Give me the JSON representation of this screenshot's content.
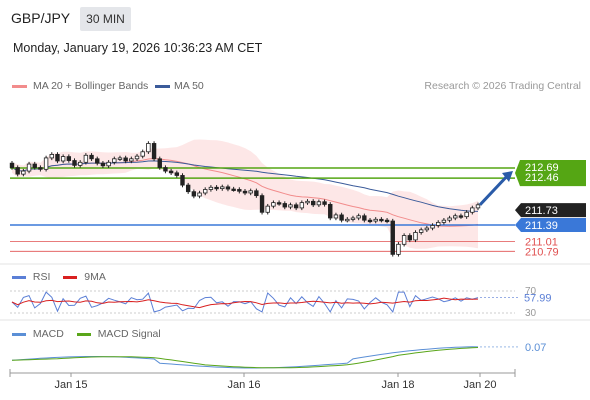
{
  "header": {
    "symbol": "GBP/JPY",
    "timeframe": "30 MIN",
    "datetime": "Monday, January 19, 2026 10:36:23 AM CET"
  },
  "legend": {
    "ma20_label": "MA 20 + Bollinger Bands",
    "ma50_label": "MA 50",
    "credit": "Research © 2026 Trading Central"
  },
  "rsi": {
    "label": "RSI",
    "ma_label": "9MA",
    "value_label": "57.99",
    "level_high": "70",
    "level_low": "30"
  },
  "macd": {
    "label": "MACD",
    "signal_label": "MACD Signal",
    "value_label": "0.07"
  },
  "colors": {
    "ma20": "#f28c8c",
    "ma50": "#3b5b9a",
    "band_fill": "#fde3e3",
    "resistance": "#55a614",
    "support_blue": "#3a78d8",
    "support_red": "#e05050",
    "current_price_tag": "#222222",
    "arrow": "#2a5ba8",
    "rsi_line": "#5b7fd6",
    "rsi_ma": "#d92020",
    "macd_line": "#5b8fd6",
    "macd_signal": "#5aa61a"
  },
  "chart_data": {
    "type": "candlestick",
    "x_tick_labels": [
      "Jan 15",
      "Jan 16",
      "Jan 18",
      "Jan 20"
    ],
    "levels": [
      {
        "value": 212.69,
        "label": "212.69",
        "kind": "resistance"
      },
      {
        "value": 212.46,
        "label": "212.46",
        "kind": "resistance"
      },
      {
        "value": 211.73,
        "label": "211.73",
        "kind": "last_price"
      },
      {
        "value": 211.39,
        "label": "211.39",
        "kind": "support"
      },
      {
        "value": 211.01,
        "label": "211.01",
        "kind": "support_minor"
      },
      {
        "value": 210.79,
        "label": "210.79",
        "kind": "support_minor"
      }
    ],
    "price_range": [
      210.5,
      214.2
    ],
    "candles": [
      [
        212.8,
        212.7
      ],
      [
        212.7,
        212.55
      ],
      [
        212.55,
        212.62
      ],
      [
        212.62,
        212.78
      ],
      [
        212.78,
        212.7
      ],
      [
        212.7,
        212.66
      ],
      [
        212.66,
        212.92
      ],
      [
        212.92,
        213.0
      ],
      [
        213.0,
        212.85
      ],
      [
        212.85,
        212.95
      ],
      [
        212.95,
        212.86
      ],
      [
        212.86,
        212.75
      ],
      [
        212.75,
        212.82
      ],
      [
        212.82,
        212.98
      ],
      [
        212.98,
        212.9
      ],
      [
        212.9,
        212.8
      ],
      [
        212.8,
        212.74
      ],
      [
        212.74,
        212.82
      ],
      [
        212.82,
        212.9
      ],
      [
        212.9,
        212.92
      ],
      [
        212.92,
        212.85
      ],
      [
        212.85,
        212.9
      ],
      [
        212.9,
        212.96
      ],
      [
        212.96,
        213.06
      ],
      [
        213.06,
        213.25
      ],
      [
        213.25,
        212.9
      ],
      [
        212.9,
        212.7
      ],
      [
        212.7,
        212.62
      ],
      [
        212.62,
        212.58
      ],
      [
        212.58,
        212.52
      ],
      [
        212.52,
        212.3
      ],
      [
        212.3,
        212.15
      ],
      [
        212.15,
        212.05
      ],
      [
        212.05,
        212.12
      ],
      [
        212.12,
        212.2
      ],
      [
        212.2,
        212.25
      ],
      [
        212.25,
        212.22
      ],
      [
        212.22,
        212.26
      ],
      [
        212.26,
        212.21
      ],
      [
        212.21,
        212.2
      ],
      [
        212.2,
        212.16
      ],
      [
        212.16,
        212.12
      ],
      [
        212.12,
        212.17
      ],
      [
        212.17,
        212.06
      ],
      [
        212.06,
        211.68
      ],
      [
        211.68,
        211.82
      ],
      [
        211.82,
        211.9
      ],
      [
        211.9,
        211.88
      ],
      [
        211.88,
        211.8
      ],
      [
        211.8,
        211.85
      ],
      [
        211.85,
        211.78
      ],
      [
        211.78,
        211.9
      ],
      [
        211.9,
        211.93
      ],
      [
        211.93,
        211.85
      ],
      [
        211.85,
        211.92
      ],
      [
        211.92,
        211.86
      ],
      [
        211.86,
        211.55
      ],
      [
        211.55,
        211.62
      ],
      [
        211.62,
        211.5
      ],
      [
        211.5,
        211.52
      ],
      [
        211.52,
        211.55
      ],
      [
        211.55,
        211.6
      ],
      [
        211.6,
        211.5
      ],
      [
        211.5,
        211.48
      ],
      [
        211.48,
        211.52
      ],
      [
        211.52,
        211.5
      ],
      [
        211.5,
        211.48
      ],
      [
        211.48,
        210.72
      ],
      [
        210.72,
        210.95
      ],
      [
        210.95,
        211.15
      ],
      [
        211.15,
        211.05
      ],
      [
        211.05,
        211.22
      ],
      [
        211.22,
        211.28
      ],
      [
        211.28,
        211.32
      ],
      [
        211.32,
        211.38
      ],
      [
        211.38,
        211.45
      ],
      [
        211.45,
        211.5
      ],
      [
        211.5,
        211.55
      ],
      [
        211.55,
        211.6
      ],
      [
        211.6,
        211.58
      ],
      [
        211.58,
        211.68
      ],
      [
        211.68,
        211.78
      ],
      [
        211.78,
        211.85
      ]
    ],
    "rsi_range": [
      0,
      100
    ],
    "rsi_value": 57.99,
    "macd_value": 0.07
  }
}
